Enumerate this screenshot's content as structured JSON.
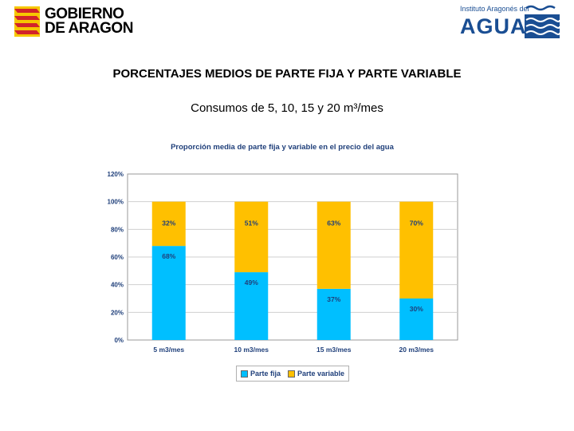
{
  "header": {
    "logo_left": {
      "line1": "GOBIERNO",
      "line2": "DE ARAGON"
    },
    "logo_right": {
      "top": "Instituto Aragonés del",
      "main": "AGUA"
    }
  },
  "page": {
    "title": "PORCENTAJES MEDIOS DE PARTE FIJA Y PARTE VARIABLE",
    "subtitle": "Consumos de 5, 10, 15 y 20 m³/mes"
  },
  "colors": {
    "fija": "#00bfff",
    "variable": "#ffc000"
  },
  "chart_data": {
    "type": "bar",
    "stacked": true,
    "title": "Proporción media de parte fija y variable en el precio del agua",
    "categories": [
      "5 m3/mes",
      "10 m3/mes",
      "15 m3/mes",
      "20 m3/mes"
    ],
    "series": [
      {
        "name": "Parte fija",
        "values": [
          68,
          49,
          37,
          30
        ],
        "labels": [
          "68%",
          "49%",
          "37%",
          "30%"
        ]
      },
      {
        "name": "Parte variable",
        "values": [
          32,
          51,
          63,
          70
        ],
        "labels": [
          "32%",
          "51%",
          "63%",
          "70%"
        ]
      }
    ],
    "yticks": [
      "0%",
      "20%",
      "40%",
      "60%",
      "80%",
      "100%",
      "120%"
    ],
    "ylim": [
      0,
      120
    ],
    "grid": true,
    "legend_position": "bottom"
  }
}
